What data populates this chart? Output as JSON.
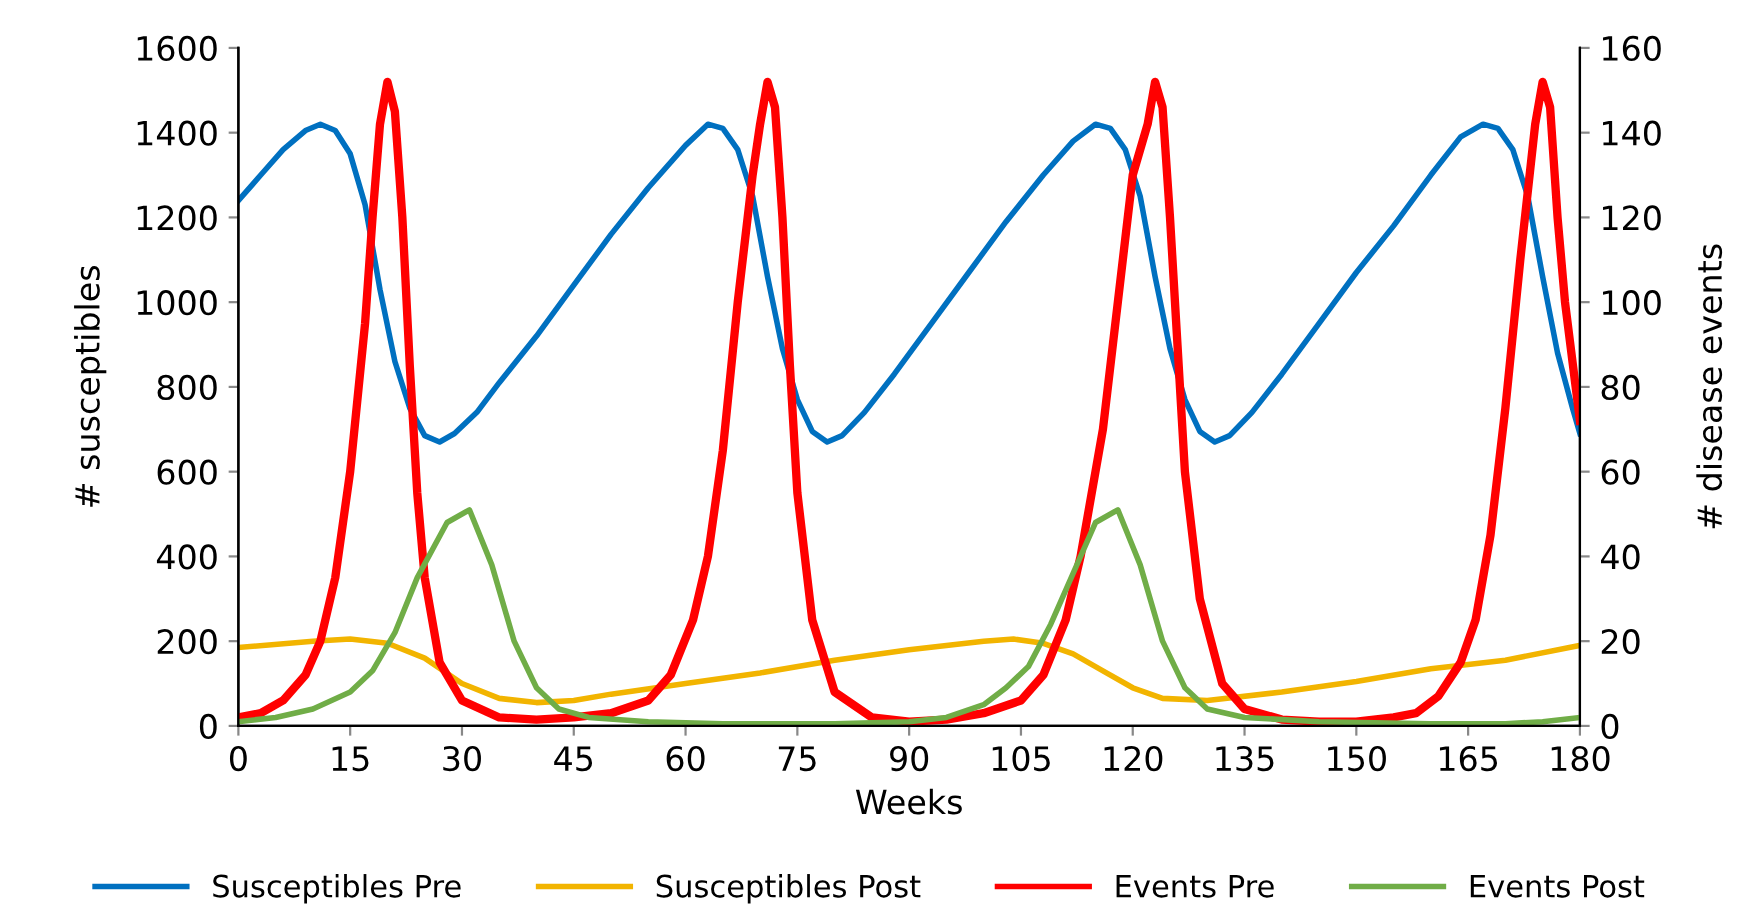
{
  "chart_data": {
    "type": "line",
    "xlabel": "Weeks",
    "ylabel": "# susceptibles",
    "y2label": "# disease events",
    "xlim": [
      0,
      180
    ],
    "xticks": [
      0,
      15,
      30,
      45,
      60,
      75,
      90,
      105,
      120,
      135,
      150,
      165,
      180
    ],
    "ylim": [
      0,
      1600
    ],
    "yticks": [
      0,
      200,
      400,
      600,
      800,
      1000,
      1200,
      1400,
      1600
    ],
    "y2lim": [
      0,
      160
    ],
    "y2ticks": [
      0,
      20,
      40,
      60,
      80,
      100,
      120,
      140,
      160
    ],
    "grid": false,
    "legend": "bottom",
    "marker": "none",
    "line_style": "solid",
    "series": [
      {
        "name": "Susceptibles Pre",
        "color": "#0070c0",
        "x": [
          0,
          3,
          6,
          9,
          11,
          13,
          15,
          17,
          19,
          21,
          23,
          25,
          27,
          29,
          32,
          35,
          40,
          45,
          50,
          55,
          60,
          63,
          65,
          67,
          69,
          71,
          73,
          75,
          77,
          79,
          81,
          84,
          88,
          93,
          98,
          103,
          108,
          112,
          115,
          117,
          119,
          121,
          123,
          125,
          127,
          129,
          131,
          133,
          136,
          140,
          145,
          150,
          155,
          160,
          164,
          167,
          169,
          171,
          173,
          175,
          177,
          179,
          180
        ],
        "values": [
          1240,
          1300,
          1360,
          1405,
          1420,
          1405,
          1350,
          1230,
          1030,
          860,
          750,
          685,
          670,
          690,
          740,
          810,
          920,
          1040,
          1160,
          1270,
          1370,
          1420,
          1410,
          1360,
          1250,
          1060,
          890,
          770,
          695,
          670,
          685,
          740,
          830,
          950,
          1070,
          1190,
          1300,
          1380,
          1420,
          1410,
          1360,
          1250,
          1060,
          890,
          770,
          695,
          670,
          685,
          740,
          830,
          950,
          1070,
          1180,
          1300,
          1390,
          1420,
          1410,
          1360,
          1250,
          1060,
          880,
          750,
          690
        ]
      },
      {
        "name": "Susceptibles Post",
        "color": "#f2b400",
        "x": [
          0,
          10,
          15,
          20,
          25,
          30,
          35,
          40,
          45,
          50,
          60,
          70,
          80,
          90,
          100,
          104,
          108,
          112,
          116,
          120,
          124,
          130,
          140,
          150,
          160,
          170,
          180
        ],
        "values": [
          185,
          200,
          205,
          195,
          160,
          100,
          65,
          55,
          60,
          75,
          100,
          125,
          155,
          180,
          200,
          205,
          195,
          170,
          130,
          90,
          65,
          60,
          80,
          105,
          135,
          155,
          190
        ]
      },
      {
        "name": "Events Pre",
        "color": "#ff0000",
        "axis": "y2",
        "x": [
          0,
          3,
          6,
          9,
          11,
          13,
          15,
          17,
          18,
          19,
          20,
          21,
          22,
          23,
          24,
          25,
          27,
          30,
          35,
          40,
          45,
          50,
          55,
          58,
          61,
          63,
          65,
          67,
          69,
          70,
          71,
          72,
          73,
          74,
          75,
          77,
          80,
          85,
          90,
          95,
          100,
          105,
          108,
          111,
          113,
          116,
          118,
          120,
          122,
          123,
          124,
          125,
          126,
          127,
          129,
          132,
          135,
          140,
          145,
          150,
          155,
          158,
          161,
          164,
          166,
          168,
          170,
          172,
          174,
          175,
          176,
          177,
          178,
          180
        ],
        "values": [
          2,
          3,
          6,
          12,
          20,
          35,
          60,
          95,
          120,
          142,
          152,
          145,
          120,
          85,
          55,
          35,
          15,
          6,
          2,
          1.5,
          2,
          3,
          6,
          12,
          25,
          40,
          65,
          100,
          130,
          142,
          152,
          146,
          120,
          85,
          55,
          25,
          8,
          2,
          1,
          1.5,
          3,
          6,
          12,
          25,
          40,
          70,
          100,
          130,
          142,
          152,
          146,
          120,
          90,
          60,
          30,
          10,
          4,
          1.5,
          1,
          1,
          2,
          3,
          7,
          15,
          25,
          45,
          75,
          110,
          142,
          152,
          146,
          120,
          100,
          72
        ]
      },
      {
        "name": "Events Post",
        "color": "#70ad47",
        "axis": "y2",
        "x": [
          0,
          5,
          10,
          15,
          18,
          21,
          24,
          28,
          31,
          34,
          37,
          40,
          43,
          47,
          55,
          65,
          80,
          90,
          95,
          100,
          103,
          106,
          109,
          112,
          115,
          118,
          121,
          124,
          127,
          130,
          135,
          145,
          160,
          170,
          175,
          180
        ],
        "values": [
          1,
          2,
          4,
          8,
          13,
          22,
          35,
          48,
          51,
          38,
          20,
          9,
          4,
          2,
          1,
          0.5,
          0.5,
          1,
          2,
          5,
          9,
          14,
          24,
          36,
          48,
          51,
          38,
          20,
          9,
          4,
          2,
          1,
          0.5,
          0.5,
          1,
          2
        ]
      }
    ]
  }
}
